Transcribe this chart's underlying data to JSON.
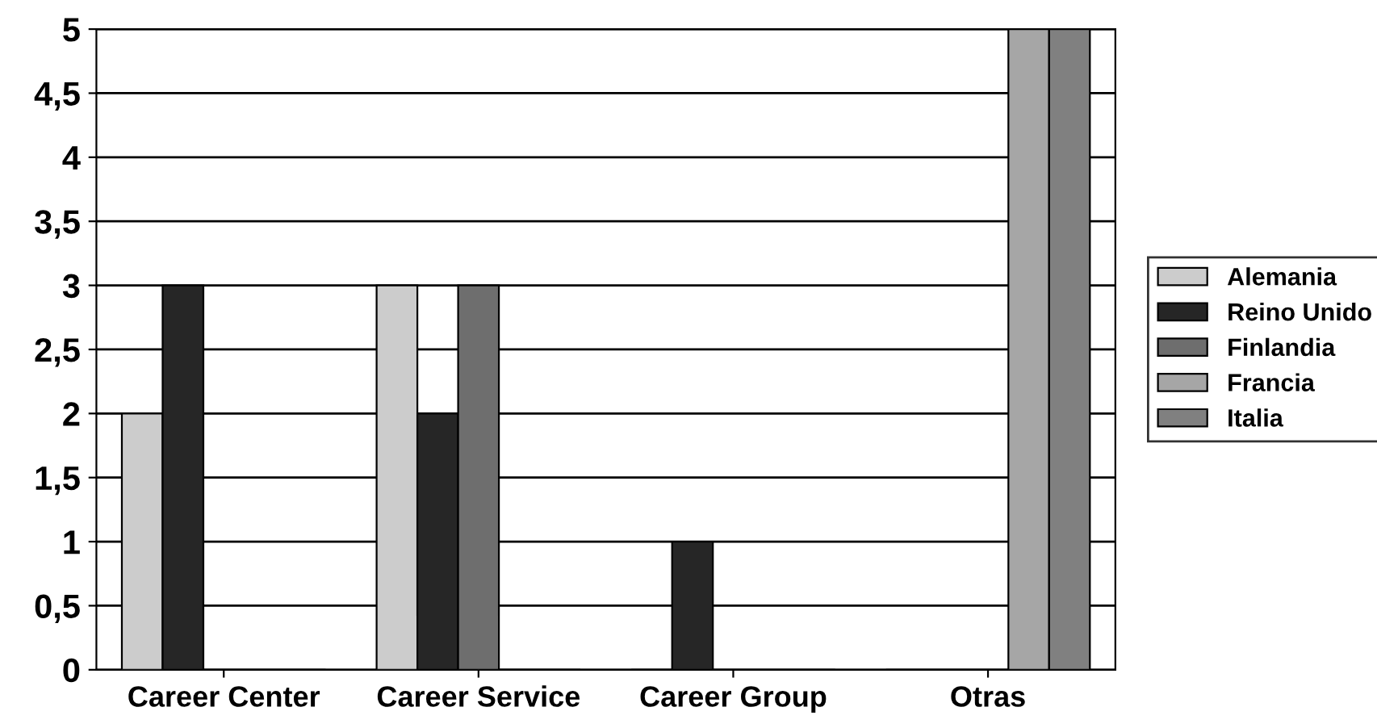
{
  "chart_data": {
    "type": "bar",
    "categories": [
      "Career Center",
      "Career Service",
      "Career Group",
      "Otras"
    ],
    "series": [
      {
        "name": "Alemania",
        "color": "#cccccc",
        "values": [
          2,
          3,
          0,
          0
        ]
      },
      {
        "name": "Reino Unido",
        "color": "#262626",
        "values": [
          3,
          2,
          1,
          0
        ]
      },
      {
        "name": "Finlandia",
        "color": "#6e6e6e",
        "values": [
          0,
          3,
          0,
          0
        ]
      },
      {
        "name": "Francia",
        "color": "#a6a6a6",
        "values": [
          0,
          0,
          0,
          5
        ]
      },
      {
        "name": "Italia",
        "color": "#808080",
        "values": [
          0,
          0,
          0,
          5
        ]
      }
    ],
    "ylim": [
      0,
      5
    ],
    "yticks": [
      0,
      {
        "value": 0.5,
        "label": "0,5"
      },
      1,
      {
        "value": 1.5,
        "label": "1,5"
      },
      2,
      {
        "value": 2.5,
        "label": "2,5"
      },
      3,
      {
        "value": 3.5,
        "label": "3,5"
      },
      4,
      {
        "value": 4.5,
        "label": "4,5"
      },
      5
    ],
    "grid": "y",
    "legend": "right"
  }
}
